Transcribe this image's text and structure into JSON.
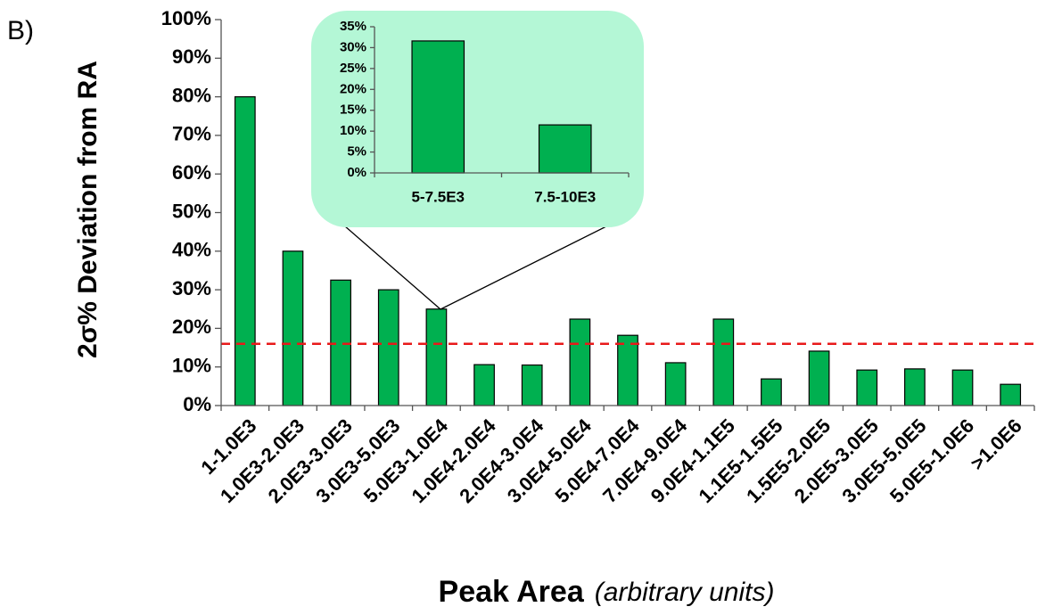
{
  "panel_label": "B)",
  "chart_data": [
    {
      "type": "bar",
      "y_label": "2σ% Deviation from RA",
      "x_label": "Peak Area",
      "x_label_detail": "(arbitrary units)",
      "categories": [
        "1-1.0E3",
        "1.0E3-2.0E3",
        "2.0E3-3.0E3",
        "3.0E3-5.0E3",
        "5.0E3-1.0E4",
        "1.0E4-2.0E4",
        "2.0E4-3.0E4",
        "3.0E4-5.0E4",
        "5.0E4-7.0E4",
        "7.0E4-9.0E4",
        "9.0E4-1.1E5",
        "1.1E5-1.5E5",
        "1.5E5-2.0E5",
        "2.0E5-3.0E5",
        "3.0E5-5.0E5",
        "5.0E5-1.0E6",
        ">1.0E6"
      ],
      "values": [
        80,
        40,
        32.5,
        30,
        25,
        10.6,
        10.5,
        22.4,
        18.2,
        11.1,
        22.4,
        6.9,
        14.1,
        9.2,
        9.5,
        9.2,
        5.5
      ],
      "color": "#00b050",
      "ylim": [
        0,
        100
      ],
      "yticks": [
        {
          "value": 0,
          "label": "0%"
        },
        {
          "value": 10,
          "label": "10%"
        },
        {
          "value": 20,
          "label": "20%"
        },
        {
          "value": 30,
          "label": "30%"
        },
        {
          "value": 40,
          "label": "40%"
        },
        {
          "value": 50,
          "label": "50%"
        },
        {
          "value": 60,
          "label": "60%"
        },
        {
          "value": 70,
          "label": "70%"
        },
        {
          "value": 80,
          "label": "80%"
        },
        {
          "value": 90,
          "label": "90%"
        },
        {
          "value": 100,
          "label": "100%"
        }
      ],
      "grid": false,
      "reference_line": {
        "value": 16,
        "color": "#e8191a",
        "style": "dashed"
      }
    },
    {
      "type": "bar",
      "categories": [
        "5-7.5E3",
        "7.5-10E3"
      ],
      "values": [
        31.6,
        11.5
      ],
      "color": "#00b050",
      "ylim": [
        0,
        35
      ],
      "yticks": [
        {
          "value": 0,
          "label": "0%"
        },
        {
          "value": 5,
          "label": "5%"
        },
        {
          "value": 10,
          "label": "10%"
        },
        {
          "value": 15,
          "label": "15%"
        },
        {
          "value": 20,
          "label": "20%"
        },
        {
          "value": 25,
          "label": "25%"
        },
        {
          "value": 30,
          "label": "30%"
        },
        {
          "value": 35,
          "label": "35%"
        }
      ],
      "grid": false
    }
  ]
}
